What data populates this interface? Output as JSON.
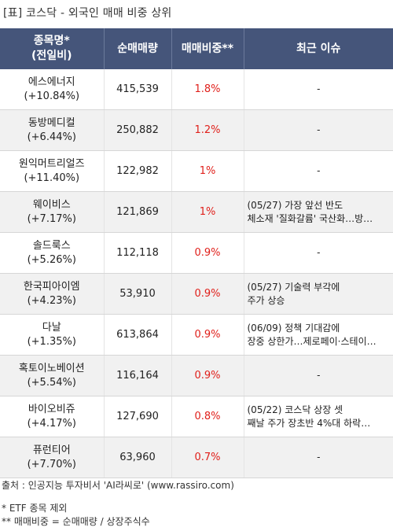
{
  "title": "[표] 코스닥 - 외국인 매매 비중 상위",
  "headers": {
    "name_line1": "종목명*",
    "name_line2": "(전일비)",
    "volume": "순매매량",
    "ratio": "매매비중**",
    "issue": "최근 이슈"
  },
  "rows": [
    {
      "name": "에스에너지",
      "change": "(+10.84%)",
      "volume": "415,539",
      "ratio": "1.8%",
      "issue_line1": "-",
      "issue_line2": ""
    },
    {
      "name": "동방메디컬",
      "change": "(+6.44%)",
      "volume": "250,882",
      "ratio": "1.2%",
      "issue_line1": "-",
      "issue_line2": ""
    },
    {
      "name": "원익머트리얼즈",
      "change": "(+11.40%)",
      "volume": "122,982",
      "ratio": "1%",
      "issue_line1": "-",
      "issue_line2": ""
    },
    {
      "name": "웨이비스",
      "change": "(+7.17%)",
      "volume": "121,869",
      "ratio": "1%",
      "issue_line1": "(05/27) 가장 앞선 반도",
      "issue_line2": "체소재 '질화갈륨' 국산화…방…"
    },
    {
      "name": "솔드룩스",
      "change": "(+5.26%)",
      "volume": "112,118",
      "ratio": "0.9%",
      "issue_line1": "-",
      "issue_line2": ""
    },
    {
      "name": "한국피아이엠",
      "change": "(+4.23%)",
      "volume": "53,910",
      "ratio": "0.9%",
      "issue_line1": "(05/27) 기술력 부각에",
      "issue_line2": "주가 상승"
    },
    {
      "name": "다날",
      "change": "(+1.35%)",
      "volume": "613,864",
      "ratio": "0.9%",
      "issue_line1": "(06/09) 정책 기대감에",
      "issue_line2": "장중 상한가…제로페이·스테이…"
    },
    {
      "name": "혹토이노베이션",
      "change": "(+5.54%)",
      "volume": "116,164",
      "ratio": "0.9%",
      "issue_line1": "-",
      "issue_line2": ""
    },
    {
      "name": "바이오비쥬",
      "change": "(+4.17%)",
      "volume": "127,690",
      "ratio": "0.8%",
      "issue_line1": "(05/22) 코스닥 상장 셋",
      "issue_line2": "째날 주가 장초반 4%대 하락…"
    },
    {
      "name": "퓨런티어",
      "change": "(+7.70%)",
      "volume": "63,960",
      "ratio": "0.7%",
      "issue_line1": "-",
      "issue_line2": ""
    }
  ],
  "footer": {
    "source": "출처 : 인공지능 투자비서 'AI라씨로' (www.rassiro.com)",
    "note1": "* ETF 종목 제외",
    "note2": "** 매매비중 = 순매매량 / 상장주식수"
  },
  "colors": {
    "header_bg": "#45557a",
    "ratio_text": "#e0201b",
    "stripe_bg": "#f1f1f1"
  }
}
